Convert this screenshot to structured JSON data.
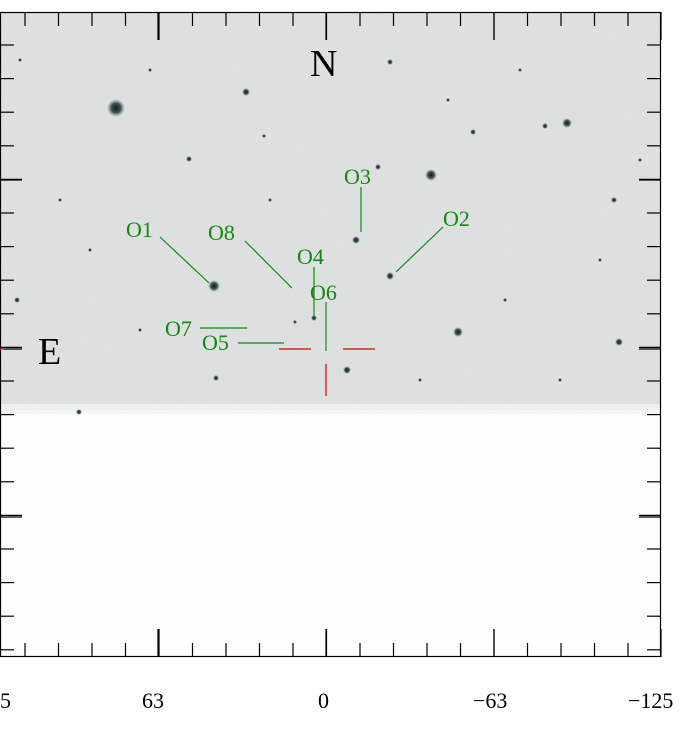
{
  "directions": {
    "north": "N",
    "east": "E"
  },
  "objects": [
    {
      "label": "O1"
    },
    {
      "label": "O2"
    },
    {
      "label": "O3"
    },
    {
      "label": "O4"
    },
    {
      "label": "O5"
    },
    {
      "label": "O6"
    },
    {
      "label": "O7"
    },
    {
      "label": "O8"
    }
  ],
  "x_axis": {
    "tick_labels": [
      "5",
      "63",
      "0",
      "−63",
      "−125"
    ]
  },
  "colors": {
    "label_green": "#108a10",
    "crosshair_red": "#e02020",
    "sky_gray": "#e4e6e6"
  }
}
